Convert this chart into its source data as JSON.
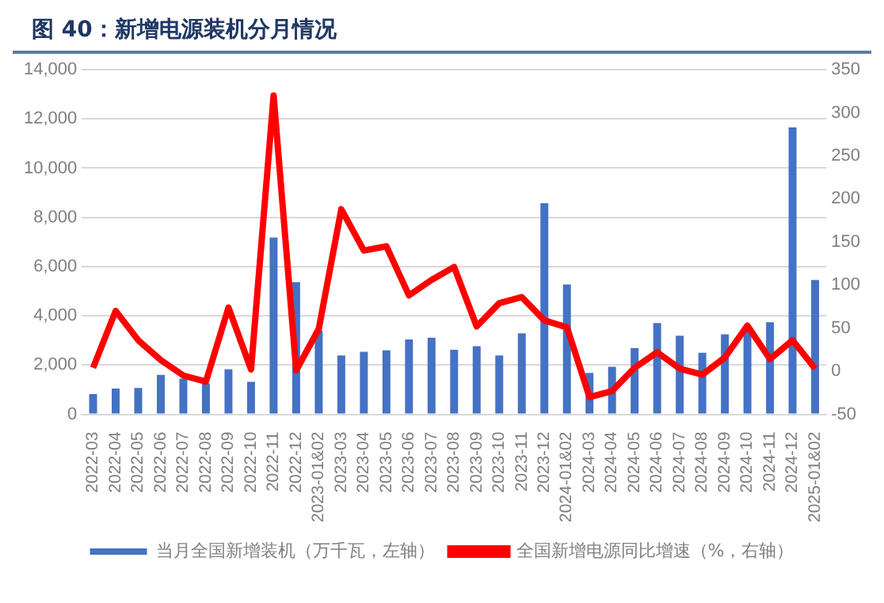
{
  "chart_data": {
    "type": "bar",
    "title": "图 40：新增电源装机分月情况",
    "categories": [
      "2022-03",
      "2022-04",
      "2022-05",
      "2022-06",
      "2022-07",
      "2022-08",
      "2022-09",
      "2022-10",
      "2022-11",
      "2022-12",
      "2023-01&02",
      "2023-03",
      "2023-04",
      "2023-05",
      "2023-06",
      "2023-07",
      "2023-08",
      "2023-09",
      "2023-10",
      "2023-11",
      "2023-12",
      "2024-01&02",
      "2024-03",
      "2024-04",
      "2024-05",
      "2024-06",
      "2024-07",
      "2024-08",
      "2024-09",
      "2024-10",
      "2024-11",
      "2024-12",
      "2025-01&02"
    ],
    "series": [
      {
        "name": "当月全国新增装机（万千瓦，左轴）",
        "color": "#4472c4",
        "values": [
          820,
          1050,
          1070,
          1600,
          1450,
          1260,
          1830,
          1320,
          7180,
          5370,
          3400,
          2390,
          2540,
          2600,
          3040,
          3110,
          2620,
          2770,
          2390,
          3290,
          8580,
          5270,
          1680,
          1930,
          2690,
          3710,
          3190,
          2500,
          3250,
          3500,
          3740,
          11650,
          5460
        ]
      },
      {
        "name": "全国新增电源同比增速（%，右轴）",
        "type": "line",
        "axis": "y2",
        "color": "#ff0000",
        "marker": "none",
        "line_style": "solid",
        "values": [
          4,
          70,
          36,
          13,
          -5,
          -12,
          74,
          2,
          320,
          1,
          49,
          188,
          140,
          145,
          88,
          106,
          121,
          52,
          79,
          86,
          59,
          51,
          -30,
          -23,
          4,
          22,
          3,
          -4,
          16,
          53,
          14,
          36,
          3
        ]
      }
    ],
    "ylim": [
      0,
      14000
    ],
    "yticks": [
      0,
      {
        "value": 2000,
        "label": "2,000"
      },
      {
        "value": 4000,
        "label": "4,000"
      },
      {
        "value": 6000,
        "label": "6,000"
      },
      {
        "value": 8000,
        "label": "8,000"
      },
      {
        "value": 10000,
        "label": "10,000"
      },
      {
        "value": 12000,
        "label": "12,000"
      },
      {
        "value": 14000,
        "label": "14,000"
      }
    ],
    "y2lim": [
      -50,
      350
    ],
    "y2ticks": [
      -50,
      0,
      50,
      100,
      150,
      200,
      250,
      300,
      350
    ],
    "grid": "y",
    "legend": "bottom"
  }
}
